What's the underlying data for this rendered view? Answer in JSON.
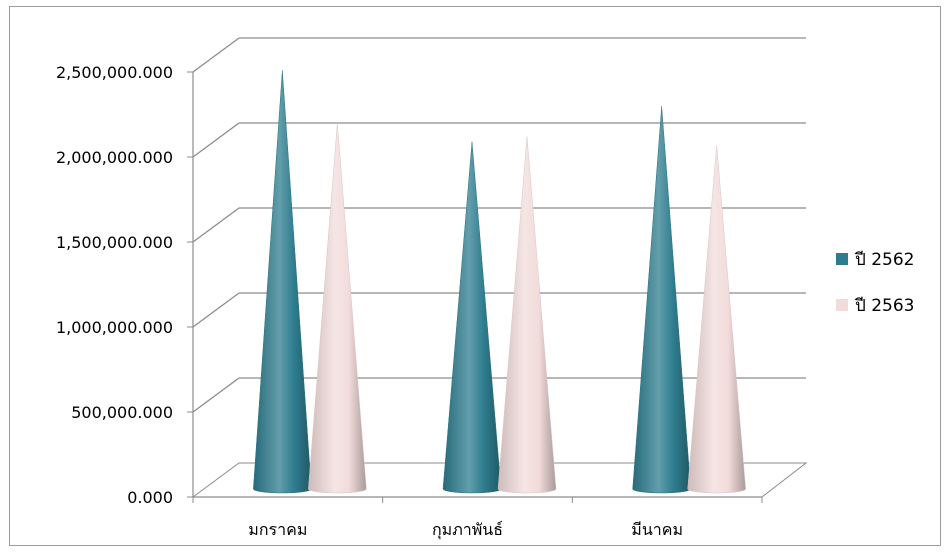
{
  "chart_data": {
    "type": "bar",
    "subtype": "3d-cone",
    "categories": [
      "มกราคม",
      "กุมภาพันธ์",
      "มีนาคม"
    ],
    "series": [
      {
        "name": "ปี 2562",
        "values": [
          2470000,
          2050000,
          2260000
        ],
        "color": "#2e7d8f"
      },
      {
        "name": "ปี 2563",
        "values": [
          2160000,
          2080000,
          2030000
        ],
        "color": "#f2dcdb"
      }
    ],
    "ylim": [
      0,
      2500000
    ],
    "y_ticks": [
      0,
      500000,
      1000000,
      1500000,
      2000000,
      2500000
    ],
    "y_tick_labels": [
      "0.000",
      "500,000.000",
      "1,000,000.000",
      "1,500,000.000",
      "2,000,000.000",
      "2,500,000.000"
    ],
    "grid": true,
    "legend_position": "right",
    "title": "",
    "xlabel": "",
    "ylabel": ""
  }
}
